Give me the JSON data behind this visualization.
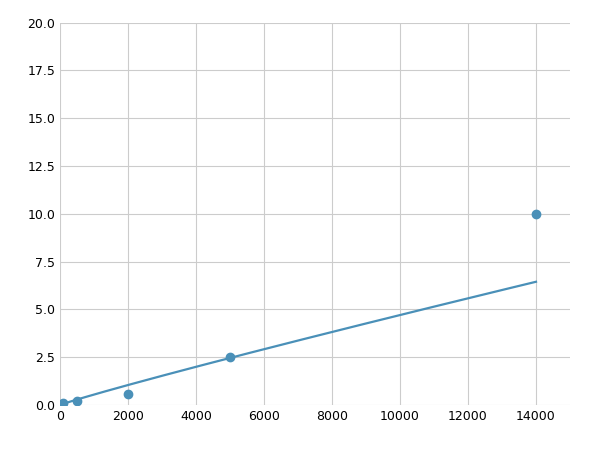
{
  "x": [
    100,
    500,
    2000,
    5000,
    14000
  ],
  "y": [
    0.1,
    0.2,
    0.6,
    2.5,
    10.0
  ],
  "line_color": "#4a90b8",
  "marker_color": "#4a90b8",
  "marker_size": 6,
  "line_width": 1.6,
  "xlim": [
    0,
    15000
  ],
  "ylim": [
    0,
    20
  ],
  "xticks": [
    0,
    2000,
    4000,
    6000,
    8000,
    10000,
    12000,
    14000
  ],
  "yticks": [
    0.0,
    2.5,
    5.0,
    7.5,
    10.0,
    12.5,
    15.0,
    17.5,
    20.0
  ],
  "grid_color": "#cccccc",
  "background_color": "#ffffff",
  "figsize": [
    6.0,
    4.5
  ],
  "dpi": 100
}
